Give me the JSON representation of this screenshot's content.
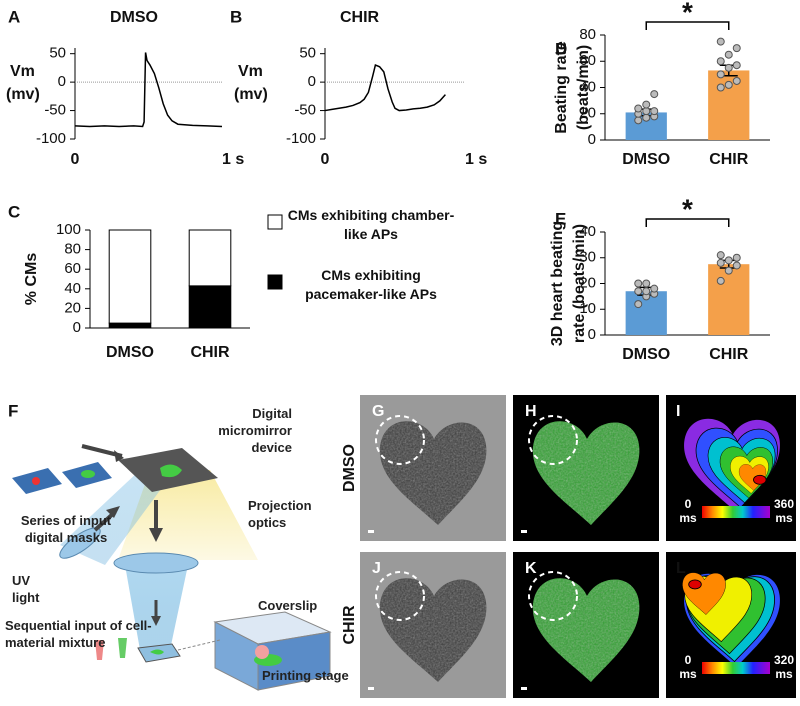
{
  "chart_data": [
    {
      "type": "line",
      "panel": "A",
      "title": "DMSO",
      "y_label": [
        "Vm",
        "(mv)"
      ],
      "x": [
        0,
        0.1,
        0.2,
        0.3,
        0.4,
        0.46,
        0.47,
        0.48,
        0.49,
        0.51,
        0.54,
        0.57,
        0.6,
        0.63,
        0.66,
        0.7,
        0.8,
        0.9,
        1.0
      ],
      "values": [
        -77,
        -78,
        -77,
        -78,
        -77,
        -78,
        -70,
        52,
        38,
        30,
        15,
        -10,
        -38,
        -58,
        -68,
        -74,
        -76,
        -77,
        -78
      ],
      "color": "#000000",
      "xlim": [
        0,
        1
      ],
      "xticks": [
        0,
        {
          "value": 1,
          "label": "1 s"
        }
      ],
      "ylim": [
        -100,
        60
      ],
      "yticks": [
        50,
        0,
        -50,
        -100
      ],
      "zero_line": true
    },
    {
      "type": "line",
      "panel": "B",
      "title": "CHIR",
      "y_label": [
        "Vm",
        "(mv)"
      ],
      "x": [
        0,
        0.05,
        0.1,
        0.15,
        0.2,
        0.25,
        0.28,
        0.31,
        0.34,
        0.36,
        0.39,
        0.42,
        0.45,
        0.48,
        0.5,
        0.53,
        0.58,
        0.63,
        0.68,
        0.73,
        0.78,
        0.82,
        0.86
      ],
      "values": [
        -50,
        -48,
        -46,
        -44,
        -41,
        -36,
        -30,
        -18,
        10,
        30,
        27,
        18,
        -12,
        -35,
        -46,
        -50,
        -49,
        -47,
        -46,
        -44,
        -40,
        -33,
        -22
      ],
      "color": "#000000",
      "xlim": [
        0,
        1
      ],
      "xticks": [
        0,
        {
          "value": 1,
          "label": "1 s"
        }
      ],
      "ylim": [
        -100,
        60
      ],
      "yticks": [
        50,
        0,
        -50,
        -100
      ],
      "zero_line": true
    },
    {
      "type": "stacked_bar",
      "panel": "C",
      "y_label": [
        "% CMs"
      ],
      "categories": [
        "DMSO",
        "CHIR"
      ],
      "series": [
        {
          "name": "CMs exhibiting chamber-like APs",
          "color": "#ffffff",
          "values": [
            95,
            57
          ]
        },
        {
          "name": "CMs exhibiting pacemaker-like APs",
          "color": "#000000",
          "values": [
            5,
            43
          ]
        }
      ],
      "ylim": [
        0,
        100
      ],
      "yticks": [
        0,
        20,
        40,
        60,
        80,
        100
      ]
    },
    {
      "type": "bar_scatter",
      "panel": "D",
      "y_label": [
        "Beating rate",
        "(beats/min)"
      ],
      "categories": [
        "DMSO",
        "CHIR"
      ],
      "values": [
        21,
        53
      ],
      "errors": [
        2.5,
        4
      ],
      "colors": [
        "#5b9bd5",
        "#f4a04a"
      ],
      "points": [
        [
          15,
          17,
          18,
          20,
          22,
          22,
          24,
          27,
          35
        ],
        [
          40,
          42,
          45,
          50,
          55,
          57,
          60,
          65,
          70,
          75
        ]
      ],
      "ylim": [
        0,
        80
      ],
      "yticks": [
        0,
        20,
        40,
        60,
        80
      ],
      "significance": "*"
    },
    {
      "type": "bar_scatter",
      "panel": "E",
      "y_label": [
        "3D heart beating",
        "rate (beats/min)"
      ],
      "categories": [
        "DMSO",
        "CHIR"
      ],
      "values": [
        17,
        27.5
      ],
      "errors": [
        1.5,
        1.5
      ],
      "colors": [
        "#5b9bd5",
        "#f4a04a"
      ],
      "points": [
        [
          12,
          15,
          16,
          17,
          17,
          18,
          20,
          20
        ],
        [
          21,
          25,
          27,
          28,
          29,
          30,
          31
        ]
      ],
      "ylim": [
        0,
        40
      ],
      "yticks": [
        0,
        10,
        20,
        30,
        40
      ],
      "significance": "*"
    }
  ],
  "panel_f": {
    "letter": "F",
    "labels": {
      "dmd": "Digital micromirror device",
      "masks": "Series of input digital masks",
      "optics": "Projection optics",
      "uv": "UV light",
      "coverslip": "Coverslip",
      "sequential": "Sequential input of cell-material mixture",
      "stage": "Printing stage"
    }
  },
  "panels_gl": {
    "row_labels": [
      "DMSO",
      "CHIR"
    ],
    "letters": [
      "G",
      "H",
      "I",
      "J",
      "K",
      "L"
    ],
    "colorbars": [
      {
        "min": "0 ms",
        "max": "360 ms"
      },
      {
        "min": "0 ms",
        "max": "320 ms"
      }
    ]
  }
}
